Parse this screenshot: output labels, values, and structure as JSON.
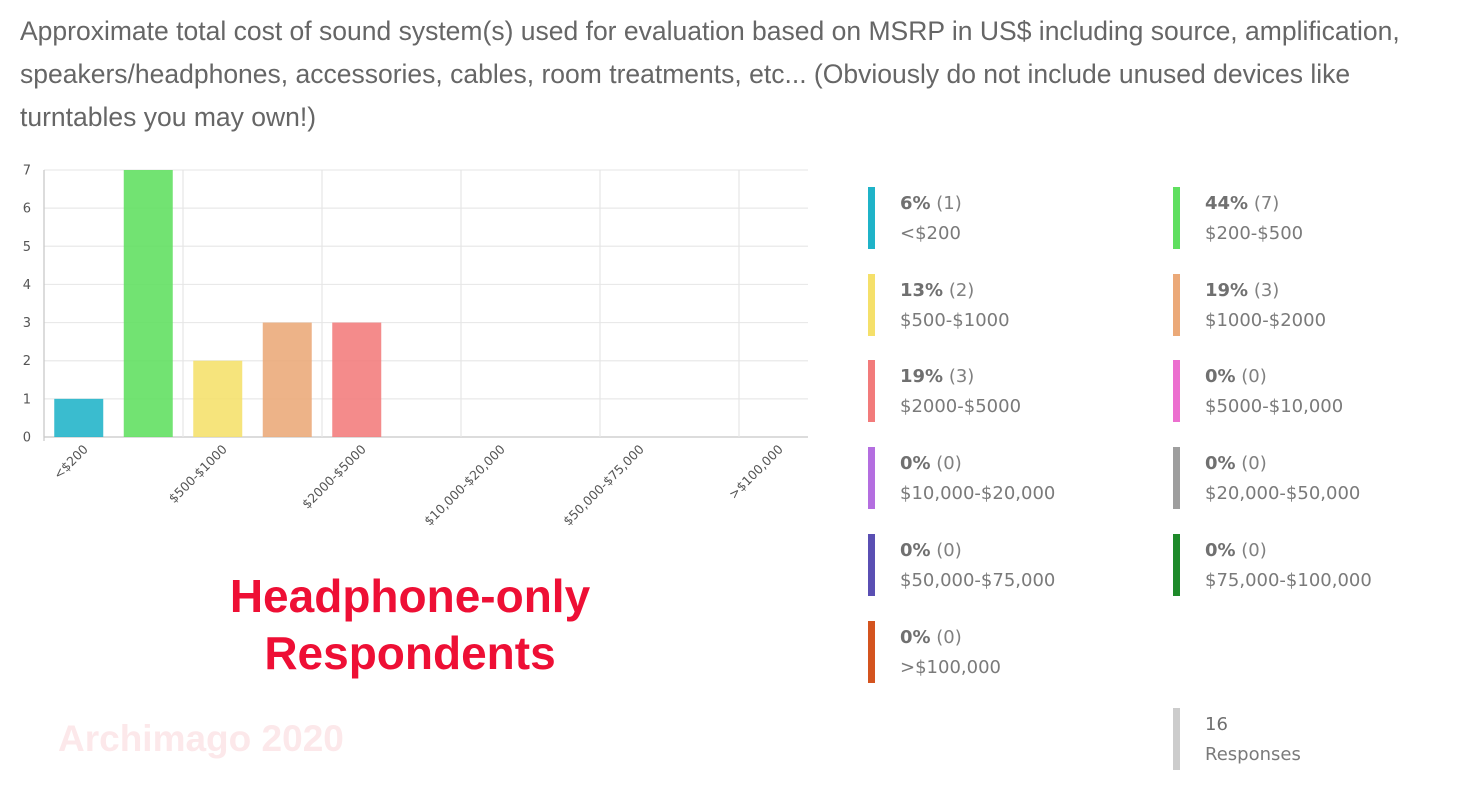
{
  "question": "Approximate total cost of sound system(s) used for evaluation based on MSRP in US$ including source, amplification, speakers/headphones, accessories, cables, room treatments, etc... (Obviously do not include unused devices like turntables you may own!)",
  "overlay_title": [
    "Headphone-only",
    "Respondents"
  ],
  "watermark": "Archimago 2020",
  "chart_data": {
    "type": "bar",
    "categories": [
      "<$200",
      "$200-$500",
      "$500-$1000",
      "$1000-$2000",
      "$2000-$5000",
      "$5000-$10,000",
      "$10,000-$20,000",
      "$20,000-$50,000",
      "$50,000-$75,000",
      "$75,000-$100,000",
      ">$100,000"
    ],
    "x_tick_labels": [
      "<$200",
      "$500-$1000",
      "$2000-$5000",
      "$10,000-$20,000",
      "$50,000-$75,000",
      ">$100,000"
    ],
    "values": [
      1,
      7,
      2,
      3,
      3,
      0,
      0,
      0,
      0,
      0,
      0
    ],
    "colors": [
      "#1fb3c8",
      "#5fdf5f",
      "#f5e06a",
      "#eba978",
      "#f27b7b",
      "#ec6fcf",
      "#b46ee0",
      "#9e9e9e",
      "#5a4fb3",
      "#1e8a2a",
      "#d4541f"
    ],
    "ylim": [
      0,
      7
    ],
    "yticks": [
      0,
      1,
      2,
      3,
      4,
      5,
      6,
      7
    ],
    "grid": true
  },
  "legend": [
    {
      "pct": "6%",
      "count": "(1)",
      "label": "<$200",
      "color": "#1fb3c8"
    },
    {
      "pct": "44%",
      "count": "(7)",
      "label": "$200-$500",
      "color": "#5fdf5f"
    },
    {
      "pct": "13%",
      "count": "(2)",
      "label": "$500-$1000",
      "color": "#f5e06a"
    },
    {
      "pct": "19%",
      "count": "(3)",
      "label": "$1000-$2000",
      "color": "#eba978"
    },
    {
      "pct": "19%",
      "count": "(3)",
      "label": "$2000-$5000",
      "color": "#f27b7b"
    },
    {
      "pct": "0%",
      "count": "(0)",
      "label": "$5000-$10,000",
      "color": "#ec6fcf"
    },
    {
      "pct": "0%",
      "count": "(0)",
      "label": "$10,000-$20,000",
      "color": "#b46ee0"
    },
    {
      "pct": "0%",
      "count": "(0)",
      "label": "$20,000-$50,000",
      "color": "#9e9e9e"
    },
    {
      "pct": "0%",
      "count": "(0)",
      "label": "$50,000-$75,000",
      "color": "#5a4fb3"
    },
    {
      "pct": "0%",
      "count": "(0)",
      "label": "$75,000-$100,000",
      "color": "#1e8a2a"
    },
    {
      "pct": "0%",
      "count": "(0)",
      "label": ">$100,000",
      "color": "#d4541f"
    }
  ],
  "responses": {
    "count": "16",
    "label": "Responses"
  }
}
